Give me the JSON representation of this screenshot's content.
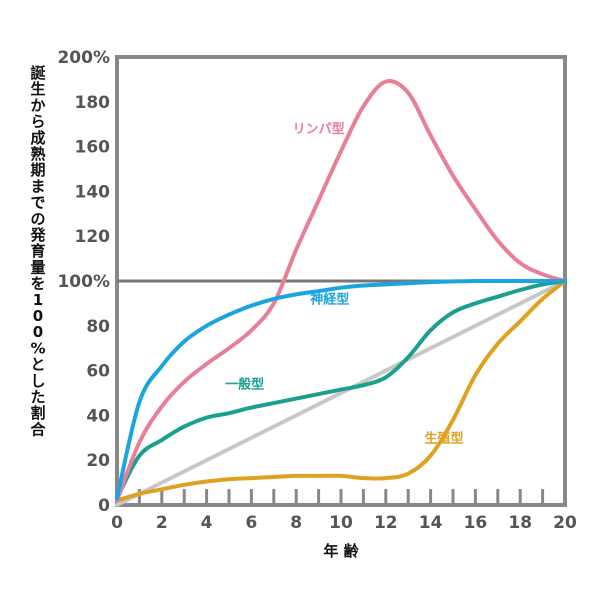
{
  "chart_data": {
    "type": "line",
    "xlabel": "年 齢",
    "ylabel": "誕生から成熟期までの発育量を100%とした割合",
    "xlim": [
      0,
      20
    ],
    "ylim": [
      0,
      200
    ],
    "x_ticks": [
      "0",
      "2",
      "4",
      "6",
      "8",
      "10",
      "12",
      "14",
      "16",
      "18",
      "20"
    ],
    "y_ticks": [
      "0",
      "20",
      "40",
      "60",
      "80",
      "100%",
      "120",
      "140",
      "160",
      "180",
      "200%"
    ],
    "reference_line_y": 100,
    "grid": false,
    "series": [
      {
        "name": "リンパ型",
        "color": "#e87f97",
        "x": [
          0,
          1,
          2,
          3,
          4,
          5,
          6,
          7,
          8,
          9,
          10,
          11,
          12,
          13,
          14,
          15,
          16,
          17,
          18,
          19,
          20
        ],
        "y": [
          2,
          28,
          44,
          55,
          63,
          70,
          78,
          90,
          114,
          136,
          158,
          178,
          189,
          184,
          165,
          147,
          132,
          118,
          108,
          103,
          100
        ]
      },
      {
        "name": "神経型",
        "color": "#1ba5e0",
        "x": [
          0,
          1,
          2,
          3,
          4,
          5,
          6,
          7,
          8,
          9,
          10,
          11,
          12,
          13,
          14,
          15,
          16,
          17,
          18,
          19,
          20
        ],
        "y": [
          3,
          46,
          62,
          73,
          80,
          85,
          89,
          92,
          94,
          95.5,
          97,
          98,
          98.5,
          99,
          99.5,
          99.8,
          100,
          100,
          100,
          100,
          100
        ]
      },
      {
        "name": "一般型",
        "color": "#1aa08f",
        "x": [
          0,
          1,
          2,
          3,
          4,
          5,
          6,
          7,
          8,
          9,
          10,
          11,
          12,
          13,
          14,
          15,
          16,
          17,
          18,
          19,
          20
        ],
        "y": [
          3,
          22,
          29,
          35,
          39,
          41,
          43.5,
          45.5,
          47.5,
          49.5,
          51.5,
          53.5,
          57,
          66,
          78,
          86,
          90,
          93,
          96,
          98.5,
          100
        ]
      },
      {
        "name": "生殖型",
        "color": "#e0a020",
        "x": [
          0,
          1,
          2,
          3,
          4,
          5,
          6,
          7,
          8,
          9,
          10,
          11,
          12,
          13,
          14,
          15,
          16,
          17,
          18,
          19,
          20
        ],
        "y": [
          2,
          5,
          7,
          9,
          10.5,
          11.5,
          12,
          12.5,
          13,
          13,
          13,
          12,
          12,
          14,
          22,
          38,
          58,
          72,
          82,
          92,
          100
        ]
      },
      {
        "name": "",
        "color": "#c8c8c8",
        "x": [
          0,
          20
        ],
        "y": [
          0,
          100
        ]
      }
    ]
  }
}
